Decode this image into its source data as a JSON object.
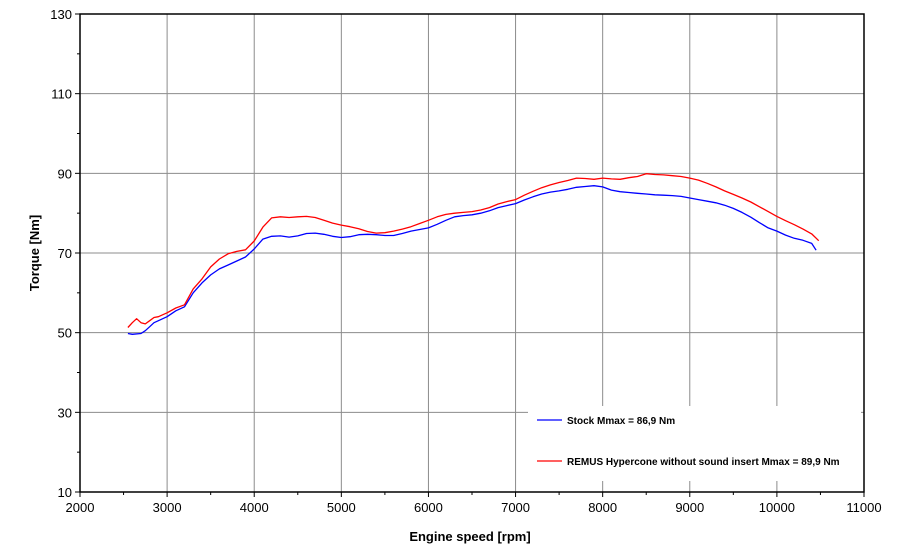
{
  "chart_data": {
    "type": "line",
    "title": "",
    "xlabel": "Engine speed [rpm]",
    "ylabel": "Torque [Nm]",
    "xlim": [
      2000,
      11000
    ],
    "ylim": [
      10,
      130
    ],
    "xticks": [
      2000,
      3000,
      4000,
      5000,
      6000,
      7000,
      8000,
      9000,
      10000,
      11000
    ],
    "yticks": [
      10,
      30,
      50,
      70,
      90,
      110,
      130
    ],
    "x_tick_labels": [
      "2000",
      "3000",
      "4000",
      "5000",
      "6000",
      "7000",
      "8000",
      "9000",
      "10000",
      "11000"
    ],
    "y_tick_labels": [
      "10",
      "30",
      "50",
      "70",
      "90",
      "110",
      "130"
    ],
    "grid": true,
    "legend_position": "bottom-right",
    "series": [
      {
        "name": "Stock Mmax = 86,9 Nm",
        "color": "#0000ff",
        "x": [
          2550,
          2600,
          2700,
          2750,
          2800,
          2850,
          2900,
          3000,
          3100,
          3200,
          3300,
          3400,
          3500,
          3600,
          3700,
          3800,
          3900,
          4000,
          4100,
          4200,
          4300,
          4400,
          4500,
          4600,
          4700,
          4800,
          4900,
          5000,
          5100,
          5200,
          5300,
          5400,
          5500,
          5600,
          5700,
          5800,
          5900,
          6000,
          6100,
          6200,
          6300,
          6400,
          6500,
          6600,
          6700,
          6800,
          6900,
          7000,
          7100,
          7200,
          7300,
          7400,
          7500,
          7600,
          7700,
          7800,
          7900,
          8000,
          8100,
          8200,
          8300,
          8400,
          8500,
          8600,
          8700,
          8800,
          8900,
          9000,
          9100,
          9200,
          9300,
          9400,
          9500,
          9600,
          9700,
          9800,
          9900,
          10000,
          10100,
          10200,
          10300,
          10400,
          10450
        ],
        "y": [
          49.8,
          49.6,
          49.8,
          50.5,
          51.5,
          52.5,
          53.0,
          54.0,
          55.5,
          56.5,
          60.0,
          62.5,
          64.5,
          66.0,
          67.0,
          68.0,
          69.0,
          71.0,
          73.5,
          74.2,
          74.3,
          74.0,
          74.3,
          74.9,
          75.0,
          74.7,
          74.2,
          73.9,
          74.1,
          74.6,
          74.7,
          74.6,
          74.4,
          74.4,
          74.9,
          75.5,
          75.9,
          76.3,
          77.2,
          78.2,
          79.1,
          79.4,
          79.6,
          80.0,
          80.6,
          81.4,
          81.9,
          82.4,
          83.3,
          84.1,
          84.8,
          85.3,
          85.6,
          86.0,
          86.5,
          86.7,
          86.9,
          86.6,
          85.8,
          85.4,
          85.2,
          85.0,
          84.8,
          84.6,
          84.5,
          84.4,
          84.2,
          83.8,
          83.4,
          83.0,
          82.6,
          82.0,
          81.2,
          80.2,
          79.0,
          77.6,
          76.3,
          75.5,
          74.5,
          73.7,
          73.2,
          72.4,
          70.7
        ]
      },
      {
        "name": "REMUS Hypercone without sound insert Mmax = 89,9 Nm",
        "color": "#ff0000",
        "x": [
          2550,
          2600,
          2650,
          2700,
          2750,
          2800,
          2850,
          2900,
          3000,
          3100,
          3200,
          3300,
          3400,
          3500,
          3600,
          3700,
          3800,
          3900,
          4000,
          4100,
          4200,
          4300,
          4400,
          4500,
          4600,
          4700,
          4800,
          4900,
          5000,
          5100,
          5200,
          5300,
          5400,
          5500,
          5600,
          5700,
          5800,
          5900,
          6000,
          6100,
          6200,
          6300,
          6400,
          6500,
          6600,
          6700,
          6800,
          6900,
          7000,
          7100,
          7200,
          7300,
          7400,
          7500,
          7600,
          7700,
          7800,
          7900,
          8000,
          8100,
          8200,
          8300,
          8400,
          8500,
          8600,
          8700,
          8800,
          8900,
          9000,
          9100,
          9200,
          9300,
          9400,
          9500,
          9600,
          9700,
          9800,
          9900,
          10000,
          10100,
          10200,
          10300,
          10400,
          10480
        ],
        "y": [
          51.3,
          52.5,
          53.5,
          52.5,
          52.2,
          53.0,
          53.8,
          54.0,
          55.0,
          56.2,
          57.0,
          61.0,
          63.5,
          66.5,
          68.5,
          69.8,
          70.4,
          70.8,
          73.0,
          76.5,
          78.8,
          79.1,
          78.9,
          79.1,
          79.2,
          78.9,
          78.2,
          77.5,
          77.0,
          76.6,
          76.1,
          75.4,
          75.0,
          75.1,
          75.5,
          76.0,
          76.6,
          77.4,
          78.2,
          79.1,
          79.7,
          80.0,
          80.2,
          80.4,
          80.8,
          81.4,
          82.3,
          82.9,
          83.4,
          84.5,
          85.5,
          86.4,
          87.1,
          87.7,
          88.2,
          88.8,
          88.7,
          88.5,
          88.8,
          88.6,
          88.5,
          88.9,
          89.2,
          89.9,
          89.7,
          89.6,
          89.4,
          89.2,
          88.8,
          88.3,
          87.5,
          86.6,
          85.6,
          84.7,
          83.8,
          82.8,
          81.6,
          80.4,
          79.2,
          78.1,
          77.1,
          76.0,
          74.8,
          73.1
        ]
      }
    ]
  }
}
